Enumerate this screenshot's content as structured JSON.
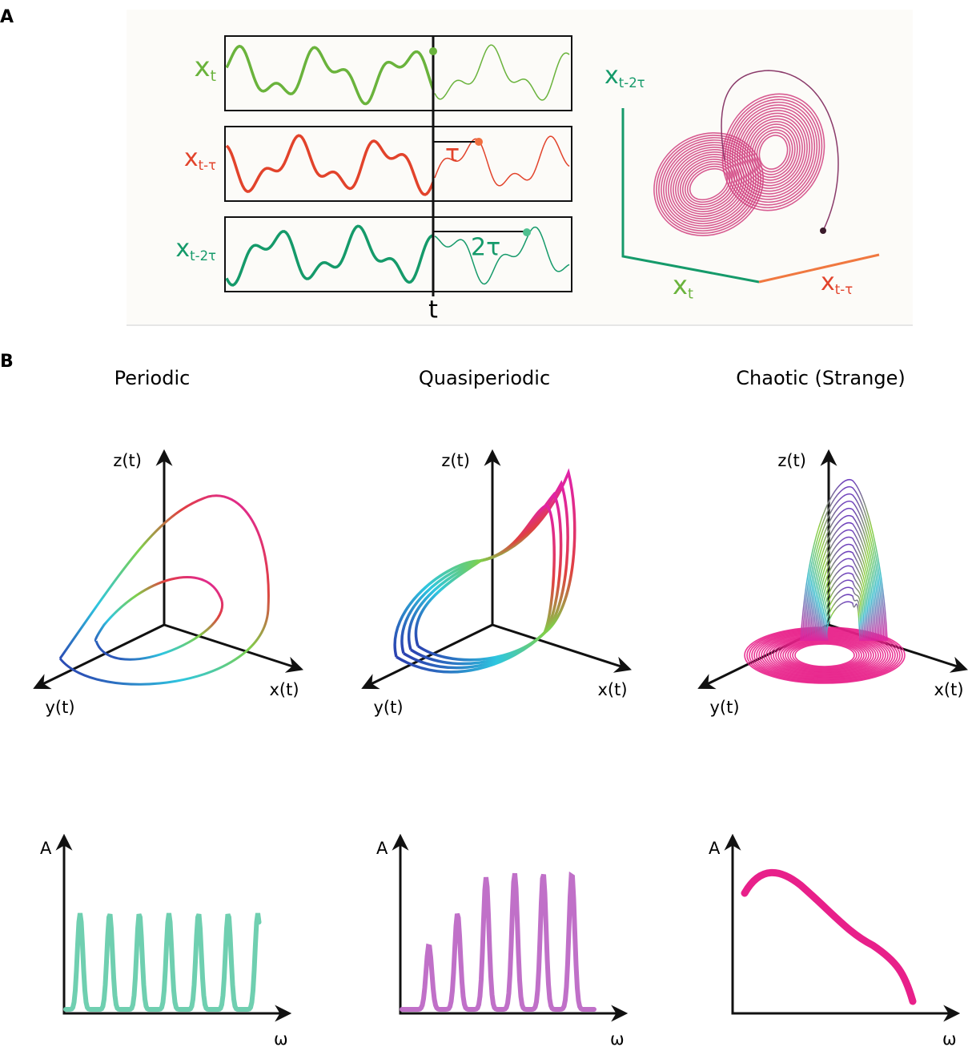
{
  "panel_a": {
    "label": "A",
    "signals": [
      {
        "base": "x",
        "sub": "t"
      },
      {
        "base": "x",
        "sub": "t-τ"
      },
      {
        "base": "x",
        "sub": "t-2τ"
      }
    ],
    "delays": [
      "τ",
      "2τ"
    ],
    "time_label": "t"
  },
  "panel_b": {
    "label": "B",
    "columns": [
      {
        "title": "Periodic",
        "axes": [
          "z(t)",
          "y(t)",
          "x(t)"
        ],
        "spectrum_axes": [
          "A",
          "ω"
        ]
      },
      {
        "title": "Quasiperiodic",
        "axes": [
          "z(t)",
          "y(t)",
          "x(t)"
        ],
        "spectrum_axes": [
          "A",
          "ω"
        ]
      },
      {
        "title": "Chaotic (Strange)",
        "axes": [
          "z(t)",
          "y(t)",
          "x(t)"
        ],
        "spectrum_axes": [
          "A",
          "ω"
        ]
      }
    ]
  }
}
